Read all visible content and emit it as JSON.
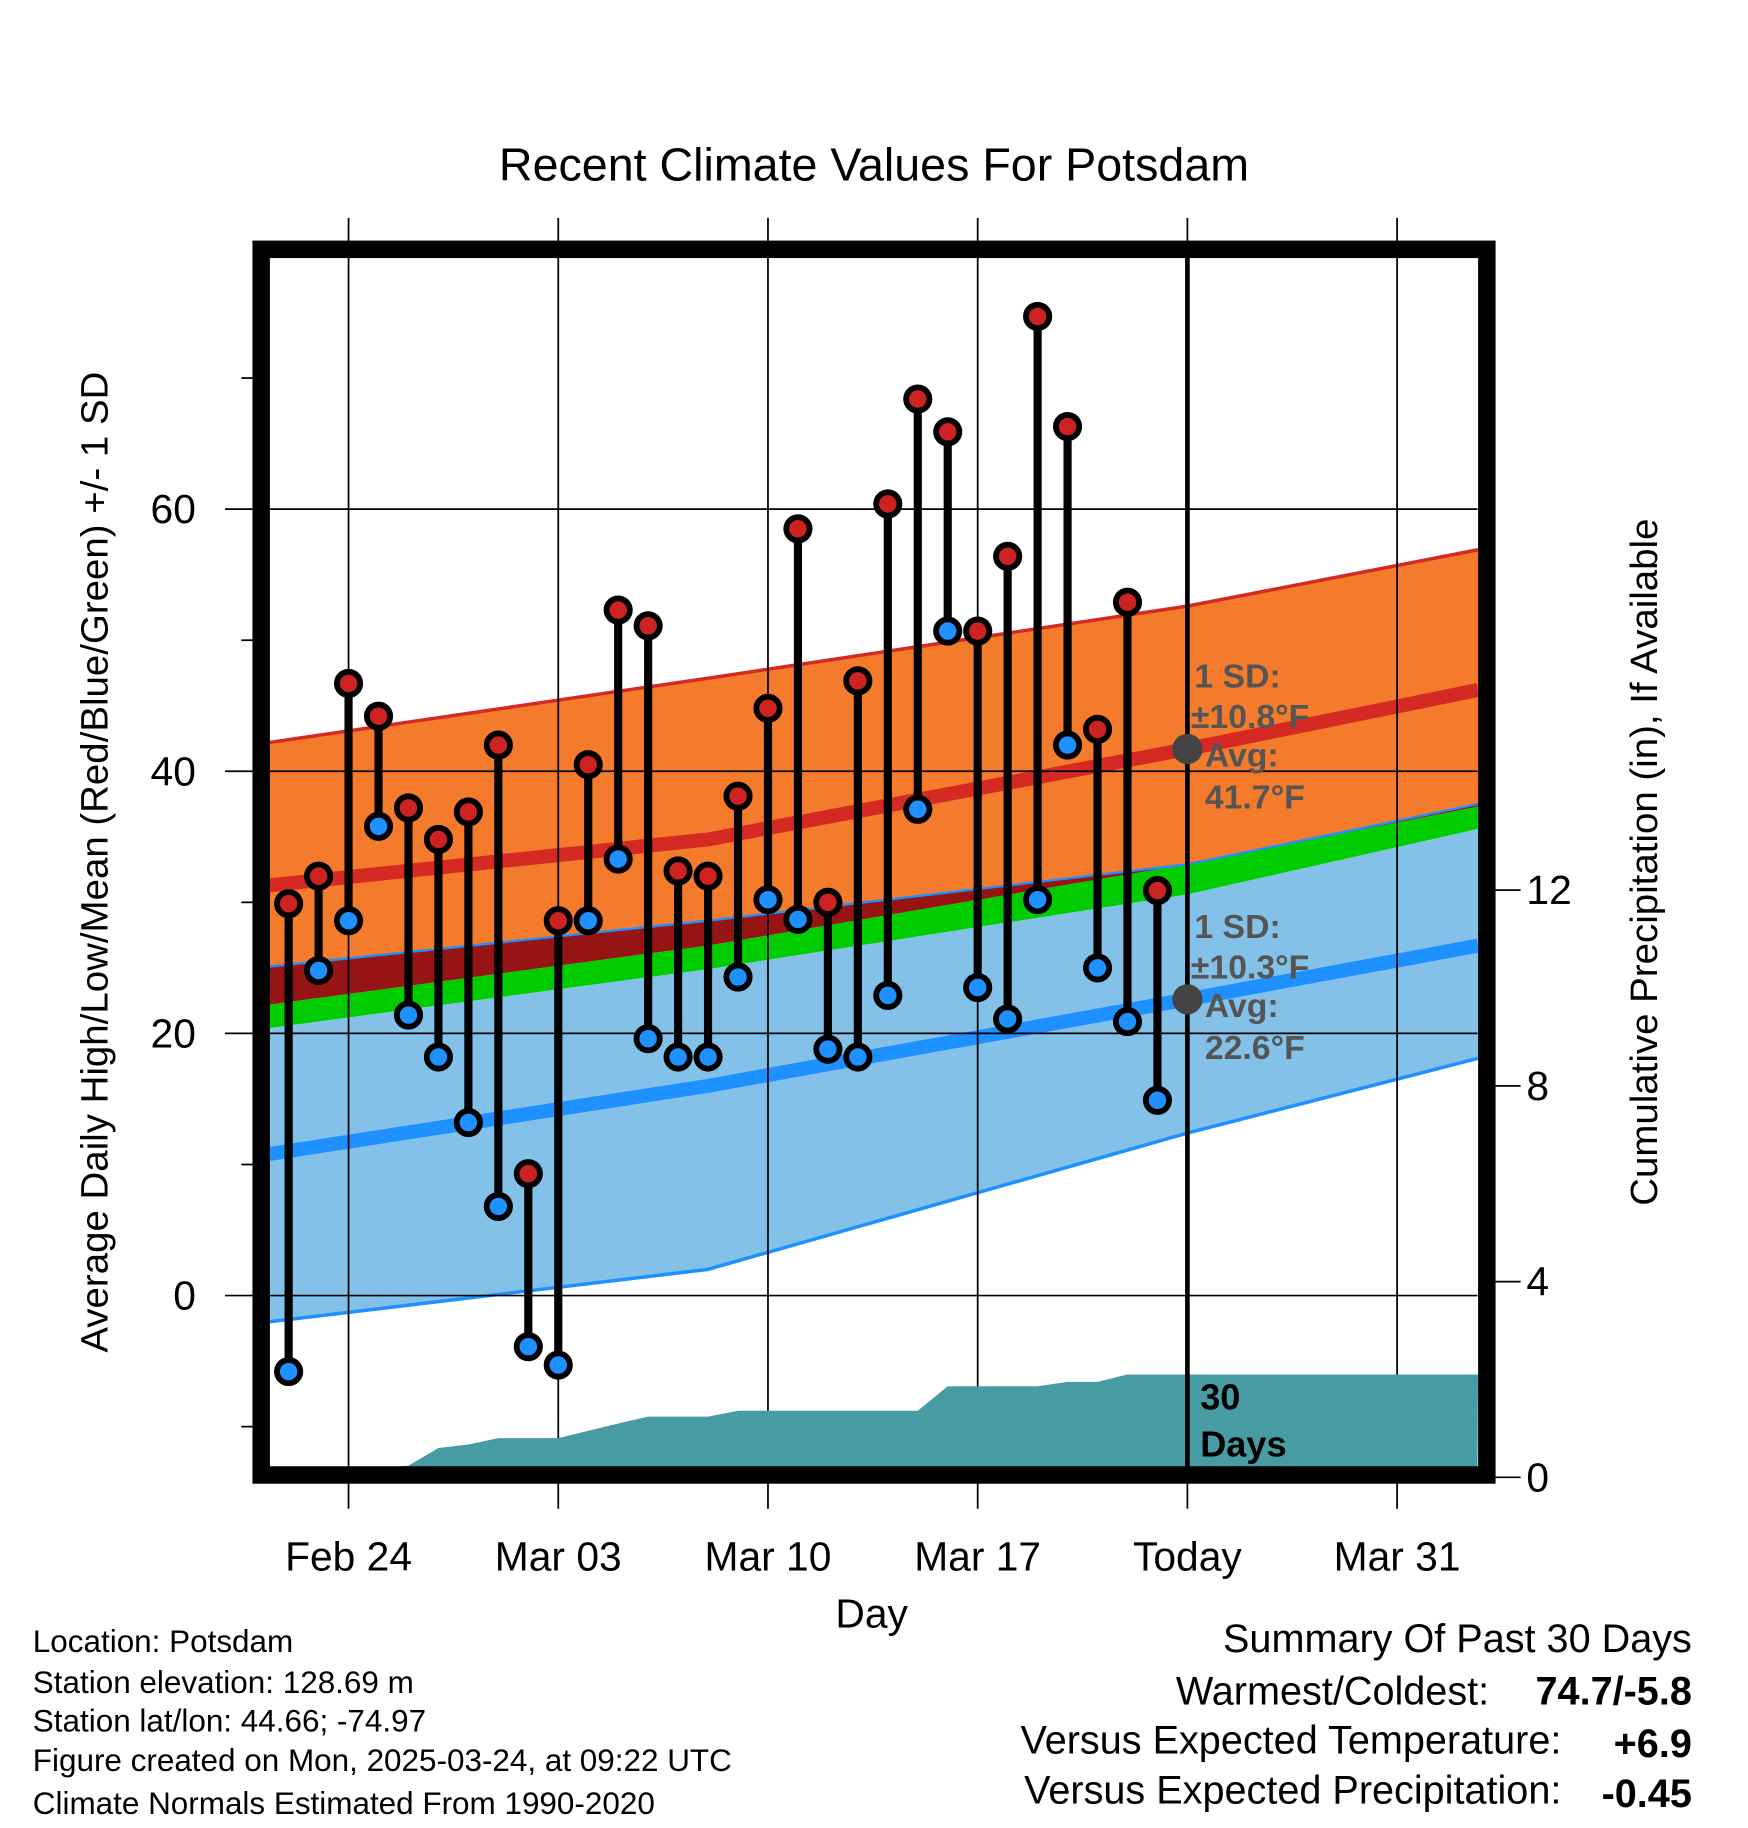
{
  "chart_data": {
    "type": "line",
    "title": "Recent Climate Values For Potsdam",
    "xlabel": "Day",
    "ylabel": "Average Daily High/Low/Mean (Red/Blue/Green) +/- 1 SD",
    "ylabel_right": "Cumulative Precipitation (in), If Available",
    "ylim": [
      -13.2,
      79.2
    ],
    "ylim_right": [
      0,
      24.7
    ],
    "x_ticks": [
      {
        "day": 0,
        "label": "Feb 24"
      },
      {
        "day": 7,
        "label": "Mar 03"
      },
      {
        "day": 14,
        "label": "Mar 10"
      },
      {
        "day": 21,
        "label": "Mar 17"
      },
      {
        "day": 28,
        "label": "Today"
      },
      {
        "day": 35,
        "label": "Mar 31"
      }
    ],
    "y_ticks": [
      0,
      20,
      40,
      60
    ],
    "y_ticks_right": [
      0,
      4,
      8,
      12
    ],
    "today_day": 28,
    "observed": {
      "days": [
        -2,
        -1,
        0,
        1,
        2,
        3,
        4,
        5,
        6,
        7,
        8,
        9,
        10,
        11,
        12,
        13,
        14,
        15,
        16,
        17,
        18,
        19,
        20,
        21,
        22,
        23,
        24,
        25,
        26,
        27
      ],
      "highs": [
        29.9,
        32.0,
        46.7,
        44.2,
        37.2,
        34.8,
        36.9,
        42.0,
        9.3,
        28.6,
        40.5,
        52.3,
        51.1,
        32.4,
        32.0,
        38.1,
        44.8,
        58.5,
        30.0,
        46.9,
        60.4,
        68.4,
        65.9,
        50.7,
        56.4,
        74.7,
        66.3,
        43.2,
        52.9,
        30.9
      ],
      "lows": [
        -5.8,
        24.8,
        28.6,
        35.8,
        21.4,
        18.2,
        13.2,
        6.8,
        -3.9,
        -5.3,
        28.6,
        33.3,
        19.6,
        18.2,
        18.2,
        24.3,
        30.2,
        28.7,
        18.8,
        18.2,
        22.9,
        37.1,
        50.7,
        23.5,
        21.1,
        30.2,
        42.0,
        25.0,
        20.9,
        14.9
      ]
    },
    "normals": {
      "days": [
        -2.64,
        12,
        28,
        37.7
      ],
      "high_upper": [
        42.2,
        47.1,
        52.6,
        56.9
      ],
      "high_mean": [
        31.3,
        34.8,
        41.7,
        46.2
      ],
      "high_lower": [
        25.1,
        28.6,
        32.9,
        37.5
      ],
      "mean_upper": [
        22.2,
        26.7,
        32.9,
        37.3
      ],
      "mean_lower": [
        20.4,
        24.9,
        30.6,
        35.6
      ],
      "low_mean": [
        10.8,
        16.0,
        22.6,
        26.7
      ],
      "low_lower": [
        -2.0,
        2.0,
        12.4,
        18.1
      ]
    },
    "precip": {
      "days": [
        -2.64,
        1,
        2,
        3,
        4,
        5,
        7,
        9,
        10,
        12,
        13,
        19,
        20,
        23,
        24,
        25,
        26,
        37.7
      ],
      "inches": [
        0,
        0,
        0.24,
        0.6,
        0.67,
        0.8,
        0.8,
        1.1,
        1.24,
        1.24,
        1.36,
        1.36,
        1.86,
        1.86,
        1.95,
        1.95,
        2.1,
        2.1
      ]
    },
    "annotations": {
      "high_sd_label": "1 SD:",
      "high_sd_value": "±10.8°F",
      "high_avg_label": "Avg:",
      "high_avg_value": "41.7°F",
      "low_sd_label": "1 SD:",
      "low_sd_value": "±10.3°F",
      "low_avg_label": "Avg:",
      "low_avg_value": "22.6°F",
      "precip_label_1": "30",
      "precip_label_2": "Days"
    },
    "colors": {
      "high_band": "#f47a2c",
      "overlap": "#961414",
      "mean_band": "#00cc00",
      "low_band": "#84c1e8",
      "high_line": "#d42a23",
      "low_line": "#1e90ff",
      "precip": "#479ca4",
      "high_point": "#cc2222",
      "low_point": "#1e90ff"
    }
  },
  "footer": {
    "location": "Location: Potsdam",
    "elevation": "Station elevation: 128.69 m",
    "latlon": "Station lat/lon: 44.66; -74.97",
    "created": "Figure created on Mon, 2025-03-24, at 09:22 UTC",
    "normals": "Climate Normals Estimated From 1990-2020"
  },
  "summary": {
    "title": "Summary Of Past 30 Days",
    "warmest_label": "Warmest/Coldest:",
    "warmest_value": "74.7/-5.8",
    "temp_label": "Versus Expected Temperature:",
    "temp_value": "+6.9",
    "temp_color": "#cc2222",
    "precip_label": "Versus Expected Precipitation:",
    "precip_value": "-0.45",
    "precip_color": "#a0522d"
  }
}
